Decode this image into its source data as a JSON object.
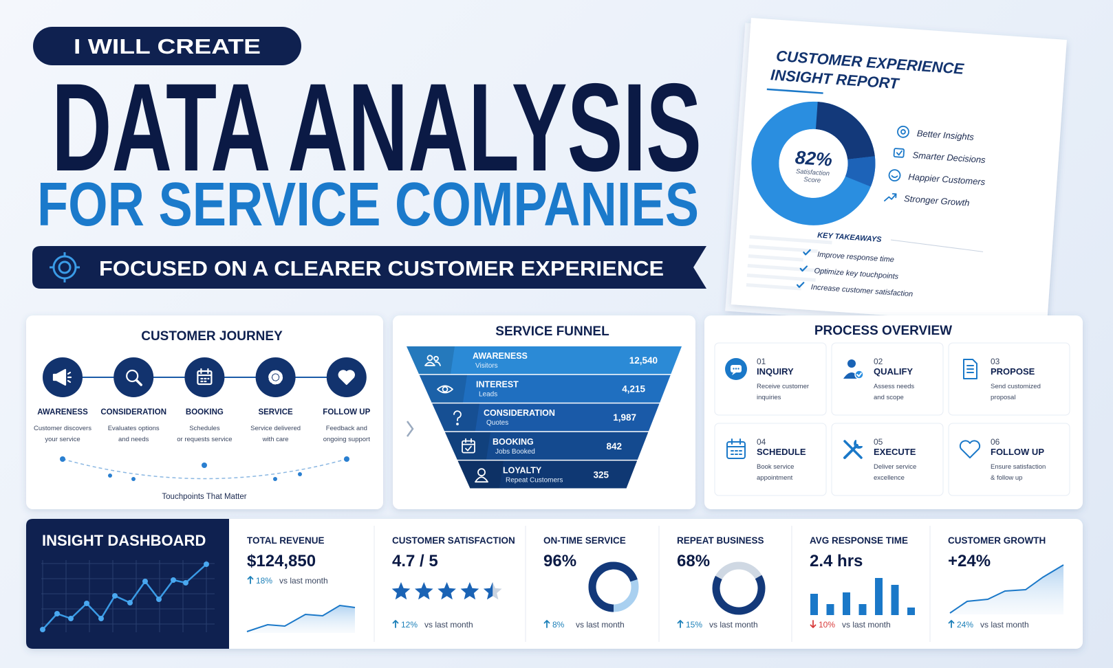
{
  "header": {
    "badge": "I WILL CREATE",
    "title": "DATA ANALYSIS",
    "subtitle": "FOR SERVICE COMPANIES",
    "banner": "FOCUSED ON A CLEARER CUSTOMER EXPERIENCE"
  },
  "report": {
    "title_lines": [
      "CUSTOMER EXPERIENCE",
      "INSIGHT REPORT"
    ],
    "score": "82%",
    "score_label_lines": [
      "Satisfaction",
      "Score"
    ],
    "benefits": [
      "Better Insights",
      "Smarter Decisions",
      "Happier Customers",
      "Stronger Growth"
    ],
    "takeaways_title": "KEY TAKEAWAYS",
    "takeaways": [
      "Improve response time",
      "Optimize key touchpoints",
      "Increase customer satisfaction"
    ]
  },
  "journey": {
    "title": "CUSTOMER JOURNEY",
    "steps": [
      {
        "label": "AWARENESS",
        "desc": [
          "Customer discovers",
          "your service"
        ]
      },
      {
        "label": "CONSIDERATION",
        "desc": [
          "Evaluates options",
          "and needs"
        ]
      },
      {
        "label": "BOOKING",
        "desc": [
          "Schedules",
          "or requests service"
        ]
      },
      {
        "label": "SERVICE",
        "desc": [
          "Service delivered",
          "with care"
        ]
      },
      {
        "label": "FOLLOW UP",
        "desc": [
          "Feedback and",
          "ongoing support"
        ]
      }
    ],
    "footer": "Touchpoints That Matter"
  },
  "funnel": {
    "title": "SERVICE FUNNEL",
    "stages": [
      {
        "label": "AWARENESS",
        "sub": "Visitors",
        "value": "12,540"
      },
      {
        "label": "INTEREST",
        "sub": "Leads",
        "value": "4,215"
      },
      {
        "label": "CONSIDERATION",
        "sub": "Quotes",
        "value": "1,987"
      },
      {
        "label": "BOOKING",
        "sub": "Jobs Booked",
        "value": "842"
      },
      {
        "label": "LOYALTY",
        "sub": "Repeat Customers",
        "value": "325"
      }
    ]
  },
  "process": {
    "title": "PROCESS OVERVIEW",
    "steps": [
      {
        "num": "01",
        "label": "INQUIRY",
        "desc": [
          "Receive customer",
          "inquiries"
        ]
      },
      {
        "num": "02",
        "label": "QUALIFY",
        "desc": [
          "Assess needs",
          "and scope"
        ]
      },
      {
        "num": "03",
        "label": "PROPOSE",
        "desc": [
          "Send customized",
          "proposal"
        ]
      },
      {
        "num": "04",
        "label": "SCHEDULE",
        "desc": [
          "Book service",
          "appointment"
        ]
      },
      {
        "num": "05",
        "label": "EXECUTE",
        "desc": [
          "Deliver service",
          "excellence"
        ]
      },
      {
        "num": "06",
        "label": "FOLLOW UP",
        "desc": [
          "Ensure satisfaction",
          "& follow up"
        ]
      }
    ]
  },
  "dashboard": {
    "title": "INSIGHT DASHBOARD",
    "kpis": [
      {
        "label": "TOTAL REVENUE",
        "value": "$124,850",
        "change": "18%",
        "compare": "vs last month",
        "change_color": "#1b7fb8"
      },
      {
        "label": "CUSTOMER SATISFACTION",
        "value": "4.7 / 5",
        "change": "12%",
        "compare": "vs last month",
        "change_color": "#1b7fb8"
      },
      {
        "label": "ON-TIME SERVICE",
        "value": "96%",
        "change": "8%",
        "compare": "vs last month",
        "change_color": "#1b7fb8"
      },
      {
        "label": "REPEAT BUSINESS",
        "value": "68%",
        "change": "15%",
        "compare": "vs last month",
        "change_color": "#1b7fb8"
      },
      {
        "label": "AVG RESPONSE TIME",
        "value": "2.4 hrs",
        "change": "10%",
        "compare": "vs last month",
        "change_color": "#d83a3a"
      },
      {
        "label": "CUSTOMER GROWTH",
        "value": "+24%",
        "change": "24%",
        "compare": "vs last month",
        "change_color": "#1b7fb8"
      }
    ]
  }
}
